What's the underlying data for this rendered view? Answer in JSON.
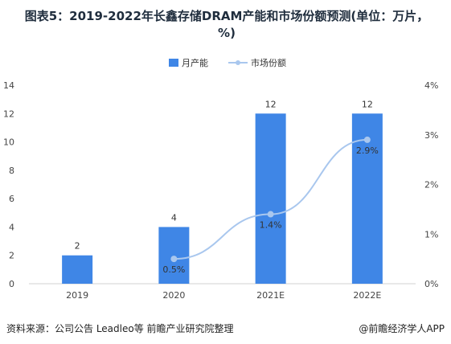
{
  "title": "图表5：2019-2022年长鑫存储DRAM产能和市场份额预测(单位：万片，%)",
  "footer": {
    "source": "资料来源：公司公告 Leadleo等 前瞻产业研究院整理",
    "credit": "@前瞻经济学人APP"
  },
  "colors": {
    "bar": "#3f86e6",
    "line": "#a9c7ee",
    "marker": "#a9c7ee"
  },
  "chart_data": {
    "type": "bar",
    "categories": [
      "2019",
      "2020",
      "2021E",
      "2022E"
    ],
    "series": [
      {
        "name": "月产能",
        "type": "bar",
        "axis": "left",
        "values": [
          2,
          4,
          12,
          12
        ],
        "labels": [
          "2",
          "4",
          "12",
          "12"
        ]
      },
      {
        "name": "市场份额",
        "type": "line",
        "axis": "right",
        "values": [
          null,
          0.5,
          1.4,
          2.9
        ],
        "labels": [
          "",
          "0.5%",
          "1.4%",
          "2.9%"
        ]
      }
    ],
    "y_left": {
      "ylim": [
        0,
        14
      ],
      "ticks": [
        "0",
        "2",
        "4",
        "6",
        "8",
        "10",
        "12",
        "14"
      ]
    },
    "y_right": {
      "ylim": [
        0,
        4
      ],
      "ticks": [
        "0%",
        "1%",
        "2%",
        "3%",
        "4%"
      ]
    },
    "legend": "top-center",
    "grid": false
  }
}
